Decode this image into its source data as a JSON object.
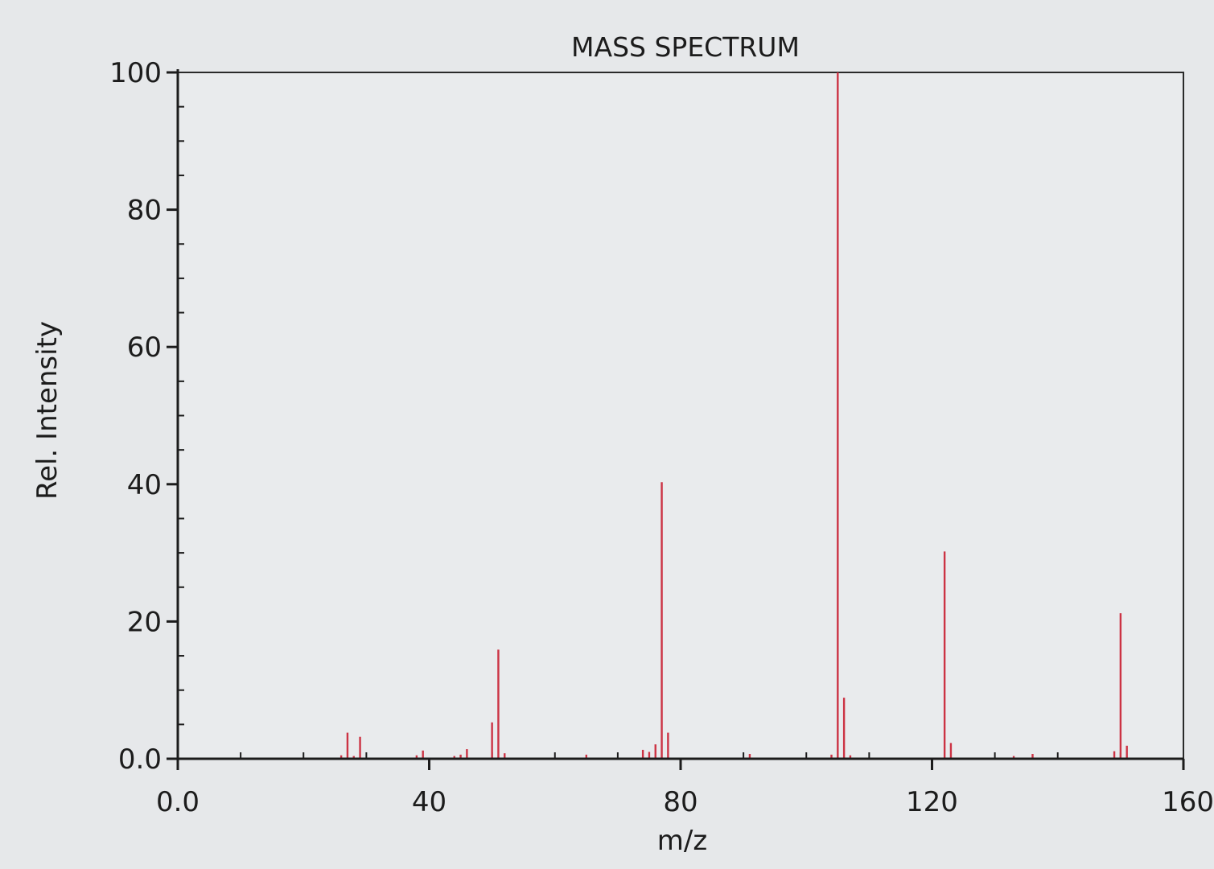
{
  "chart_data": {
    "type": "bar",
    "title": "MASS SPECTRUM",
    "xlabel": "m/z",
    "ylabel": "Rel. Intensity",
    "xlim": [
      0,
      160
    ],
    "ylim": [
      0,
      100
    ],
    "x_ticks": [
      {
        "value": 0,
        "label": "0.0"
      },
      {
        "value": 40,
        "label": "40"
      },
      {
        "value": 80,
        "label": "80"
      },
      {
        "value": 120,
        "label": "120"
      },
      {
        "value": 160,
        "label": "160"
      }
    ],
    "y_ticks": [
      {
        "value": 0,
        "label": "0.0"
      },
      {
        "value": 20,
        "label": "20"
      },
      {
        "value": 40,
        "label": "40"
      },
      {
        "value": 60,
        "label": "60"
      },
      {
        "value": 80,
        "label": "80"
      },
      {
        "value": 100,
        "label": "100"
      }
    ],
    "bar_color": "#cc3344",
    "peaks": [
      {
        "mz": 26,
        "intensity": 0.5
      },
      {
        "mz": 27,
        "intensity": 3.8
      },
      {
        "mz": 28,
        "intensity": 0.4
      },
      {
        "mz": 29,
        "intensity": 3.2
      },
      {
        "mz": 38,
        "intensity": 0.5
      },
      {
        "mz": 39,
        "intensity": 1.2
      },
      {
        "mz": 44,
        "intensity": 0.4
      },
      {
        "mz": 45,
        "intensity": 0.6
      },
      {
        "mz": 46,
        "intensity": 1.4
      },
      {
        "mz": 50,
        "intensity": 5.3
      },
      {
        "mz": 51,
        "intensity": 15.9
      },
      {
        "mz": 52,
        "intensity": 0.8
      },
      {
        "mz": 65,
        "intensity": 0.6
      },
      {
        "mz": 74,
        "intensity": 1.3
      },
      {
        "mz": 75,
        "intensity": 1.0
      },
      {
        "mz": 76,
        "intensity": 2.1
      },
      {
        "mz": 77,
        "intensity": 40.3
      },
      {
        "mz": 78,
        "intensity": 3.8
      },
      {
        "mz": 91,
        "intensity": 0.7
      },
      {
        "mz": 104,
        "intensity": 0.6
      },
      {
        "mz": 105,
        "intensity": 100
      },
      {
        "mz": 106,
        "intensity": 8.9
      },
      {
        "mz": 107,
        "intensity": 0.5
      },
      {
        "mz": 122,
        "intensity": 30.2
      },
      {
        "mz": 123,
        "intensity": 2.3
      },
      {
        "mz": 133,
        "intensity": 0.4
      },
      {
        "mz": 136,
        "intensity": 0.7
      },
      {
        "mz": 149,
        "intensity": 1.1
      },
      {
        "mz": 150,
        "intensity": 21.2
      },
      {
        "mz": 151,
        "intensity": 1.9
      }
    ]
  }
}
